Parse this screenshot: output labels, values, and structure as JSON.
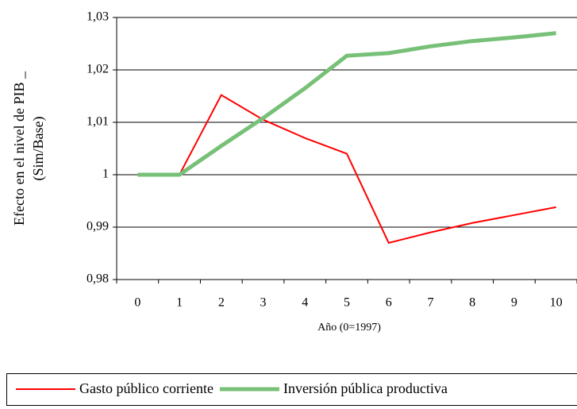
{
  "chart_data": {
    "type": "line",
    "y_label": [
      "Efecto en el nivel de PIB _",
      "(Sim/Base)"
    ],
    "x_label": "Año (0=1997)",
    "categories": [
      "0",
      "1",
      "2",
      "3",
      "4",
      "5",
      "6",
      "7",
      "8",
      "9",
      "10"
    ],
    "series": [
      {
        "name": "Gasto público corriente",
        "color": "#ff0000",
        "width": 2,
        "values": [
          1.0,
          1.0,
          1.0152,
          1.0105,
          1.007,
          1.004,
          0.987,
          0.989,
          0.9908,
          0.9923,
          0.9938
        ]
      },
      {
        "name": "Inversión pública productiva",
        "color": "#77c077",
        "width": 5,
        "values": [
          1.0,
          1.0,
          1.0055,
          1.0108,
          1.0165,
          1.0227,
          1.0232,
          1.0245,
          1.0255,
          1.0262,
          1.027
        ]
      }
    ],
    "ylim": [
      0.98,
      1.03
    ],
    "yticks": [
      {
        "value": 0.98,
        "label": "0,98"
      },
      {
        "value": 0.99,
        "label": "0,99"
      },
      1,
      {
        "value": 1.01,
        "label": "1,01"
      },
      {
        "value": 1.02,
        "label": "1,02"
      },
      {
        "value": 1.03,
        "label": "1,03"
      }
    ],
    "grid": true
  }
}
